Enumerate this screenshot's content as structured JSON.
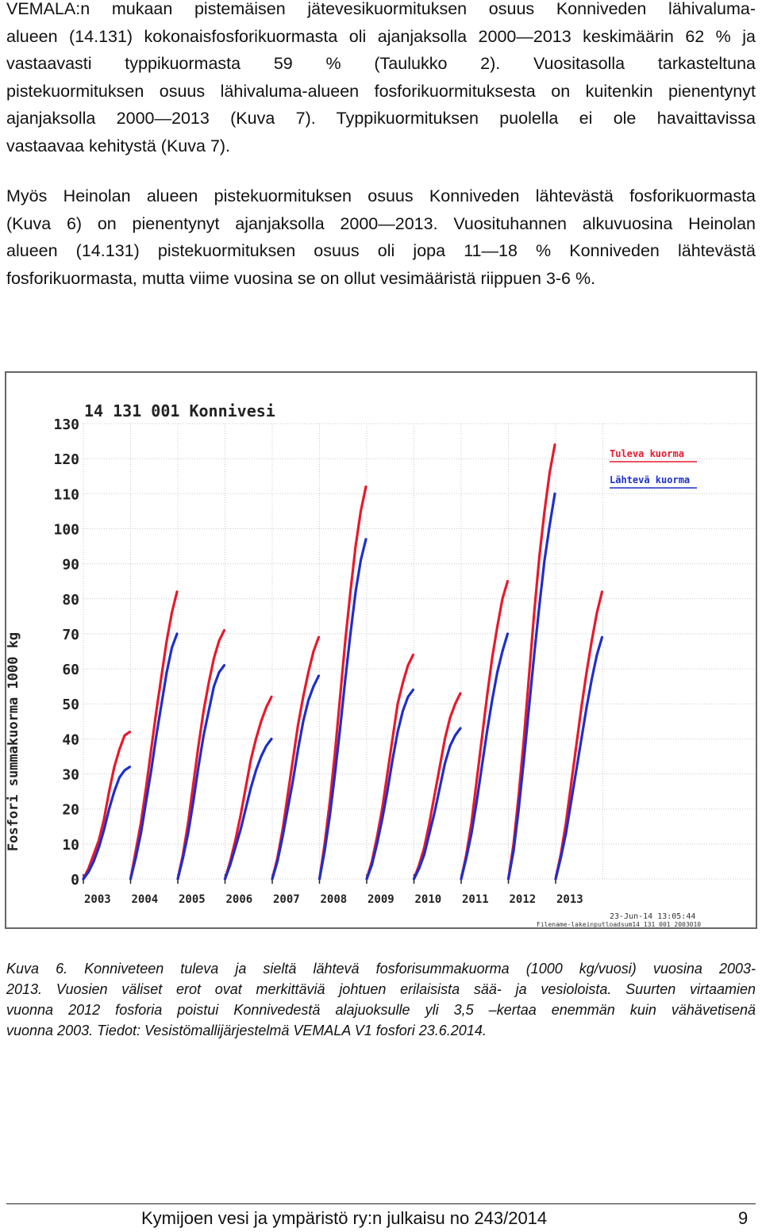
{
  "paragraphs": [
    [
      "VEMALA:n mukaan pistemäisen jätevesikuormituksen osuus Konniveden lähivaluma-",
      "alueen (14.131) kokonaisfosforikuormasta oli ajanjaksolla 2000—2013 keskimäärin 62 % ja",
      "vastaavasti typpikuormasta 59 % (Taulukko 2). Vuositasolla tarkasteltuna",
      "pistekuormituksen osuus lähivaluma-alueen fosforikuormituksesta on kuitenkin pienentynyt",
      "ajanjaksolla 2000—2013 (Kuva 7). Typpikuormituksen puolella ei ole havaittavissa",
      "vastaavaa kehitystä (Kuva 7)."
    ],
    [
      "Myös Heinolan alueen pistekuormituksen osuus Konniveden lähtevästä fosforikuormasta",
      "(Kuva 6) on pienentynyt ajanjaksolla 2000—2013. Vuosituhannen alkuvuosina Heinolan",
      "alueen (14.131) pistekuormituksen osuus oli jopa 11—18 % Konniveden lähtevästä",
      "fosforikuormasta, mutta viime vuosina se on ollut vesimääristä riippuen 3-6 %."
    ]
  ],
  "caption": [
    "Kuva 6. Konniveteen tuleva ja sieltä lähtevä fosforisummakuorma (1000 kg/vuosi) vuosina 2003-",
    "2013. Vuosien väliset erot ovat merkittäviä johtuen erilaisista sää- ja vesioloista. Suurten virtaamien",
    "vuonna 2012 fosforia poistui Konnivedestä alajuoksulle yli 3,5 –kertaa enemmän kuin vähävetisenä",
    "vuonna 2003. Tiedot: Vesistömallijärjestelmä VEMALA V1 fosfori 23.6.2014."
  ],
  "footer": {
    "text": "Kymijoen vesi ja ympäristö ry:n julkaisu no 243/2014",
    "page": "9"
  },
  "colors": {
    "inflow": "#e8192c",
    "outflow": "#1f2fc9"
  },
  "chart_data": {
    "type": "line",
    "title": "14 131 001 Konnivesi",
    "ylabel": "Fosfori summakuorma 1000 kg",
    "xlabel": "",
    "ylim": [
      0,
      130
    ],
    "yticks": [
      0,
      10,
      20,
      30,
      40,
      50,
      60,
      70,
      80,
      90,
      100,
      110,
      120,
      130
    ],
    "grid": true,
    "legend_position": "top-right",
    "categories": [
      "2003",
      "2004",
      "2005",
      "2006",
      "2007",
      "2008",
      "2009",
      "2010",
      "2011",
      "2012",
      "2013"
    ],
    "timestamp": "23-Jun-14 13:05:44",
    "filename": "Filename-lakeinputloadsum14 131 001 2003010",
    "series": [
      {
        "name": "Tuleva kuorma",
        "year_totals": [
          42,
          82,
          71,
          52,
          69,
          112,
          64,
          53,
          85,
          124,
          82
        ],
        "cumulative": [
          [
            0,
            3,
            7,
            11,
            17,
            25,
            32,
            37,
            41,
            42
          ],
          [
            0,
            8,
            16,
            26,
            37,
            48,
            58,
            68,
            76,
            82
          ],
          [
            0,
            7,
            16,
            27,
            38,
            48,
            56,
            63,
            68,
            71
          ],
          [
            0,
            5,
            11,
            18,
            26,
            34,
            40,
            45,
            49,
            52
          ],
          [
            0,
            6,
            14,
            24,
            34,
            44,
            52,
            59,
            65,
            69
          ],
          [
            0,
            10,
            22,
            36,
            52,
            68,
            82,
            95,
            105,
            112
          ],
          [
            0,
            5,
            12,
            20,
            30,
            40,
            50,
            56,
            61,
            64
          ],
          [
            0,
            4,
            9,
            16,
            24,
            32,
            40,
            46,
            50,
            53
          ],
          [
            0,
            7,
            16,
            28,
            40,
            52,
            63,
            72,
            80,
            85
          ],
          [
            0,
            10,
            24,
            40,
            58,
            76,
            92,
            105,
            116,
            124
          ],
          [
            0,
            7,
            16,
            27,
            38,
            49,
            59,
            68,
            76,
            82
          ]
        ]
      },
      {
        "name": "Lähtevä kuorma",
        "year_totals": [
          32,
          70,
          61,
          40,
          58,
          97,
          54,
          43,
          70,
          110,
          69
        ],
        "cumulative": [
          [
            0,
            2,
            5,
            9,
            14,
            20,
            25,
            29,
            31,
            32
          ],
          [
            0,
            6,
            13,
            22,
            31,
            41,
            50,
            59,
            66,
            70
          ],
          [
            0,
            6,
            13,
            22,
            32,
            41,
            48,
            55,
            59,
            61
          ],
          [
            0,
            4,
            9,
            14,
            20,
            26,
            31,
            35,
            38,
            40
          ],
          [
            0,
            5,
            12,
            20,
            28,
            37,
            45,
            51,
            55,
            58
          ],
          [
            0,
            8,
            18,
            30,
            43,
            57,
            70,
            82,
            91,
            97
          ],
          [
            0,
            4,
            10,
            17,
            25,
            34,
            42,
            48,
            52,
            54
          ],
          [
            0,
            3,
            7,
            13,
            19,
            26,
            33,
            38,
            41,
            43
          ],
          [
            0,
            6,
            13,
            22,
            32,
            42,
            51,
            59,
            65,
            70
          ],
          [
            0,
            8,
            20,
            34,
            49,
            64,
            78,
            91,
            101,
            110
          ],
          [
            0,
            6,
            13,
            22,
            31,
            40,
            49,
            57,
            64,
            69
          ]
        ]
      }
    ]
  }
}
